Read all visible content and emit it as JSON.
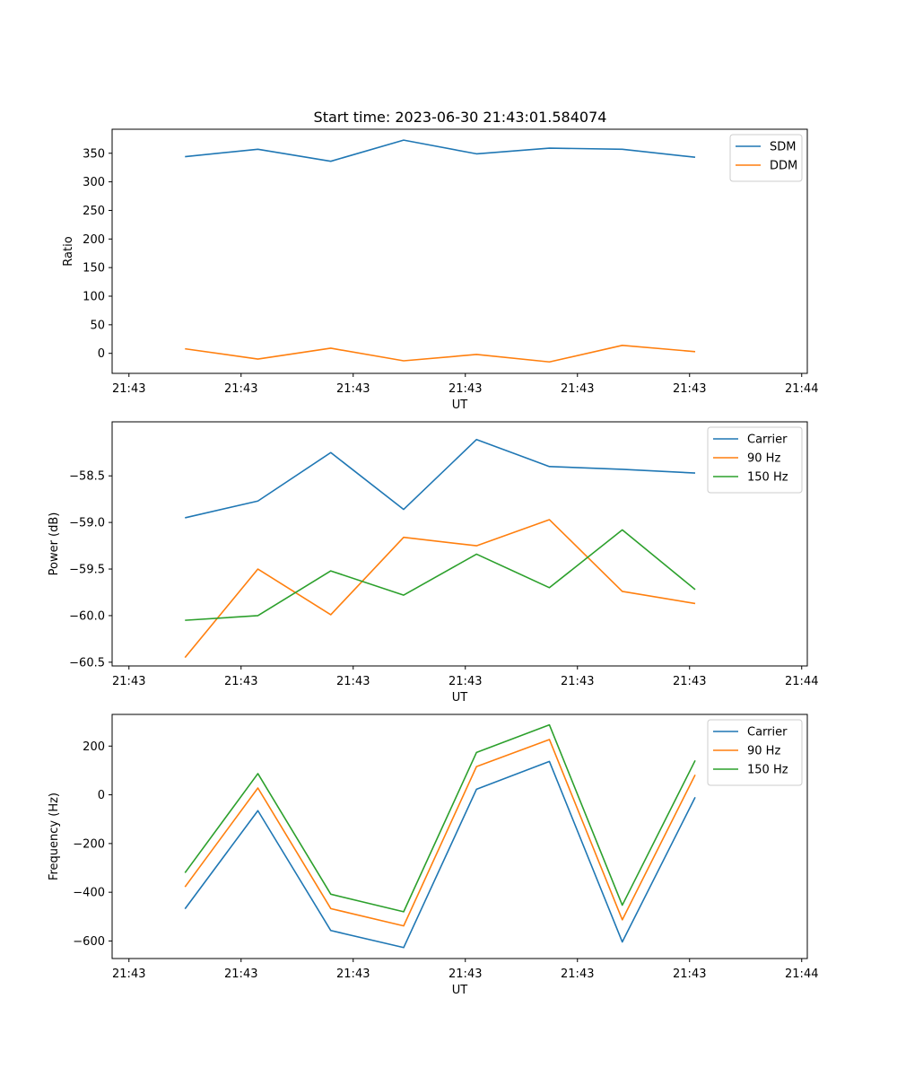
{
  "title": "Start time: 2023-06-30 21:43:01.584074",
  "chart_data": [
    {
      "type": "line",
      "title": "Start time: 2023-06-30 21:43:01.584074",
      "xlabel": "UT",
      "ylabel": "Ratio",
      "x_tick_labels": [
        "21:43",
        "21:43",
        "21:43",
        "21:43",
        "21:43",
        "21:43",
        "21:44"
      ],
      "xlim": [
        -0.15,
        6.05
      ],
      "x": [
        0.5,
        1.15,
        1.8,
        2.45,
        3.1,
        3.75,
        4.4,
        5.05
      ],
      "ylim": [
        -35,
        392
      ],
      "y_ticks": [
        0,
        50,
        100,
        150,
        200,
        250,
        300,
        350
      ],
      "legend": "top-right",
      "grid": false,
      "series": [
        {
          "name": "SDM",
          "color": "#1f77b4",
          "values": [
            344,
            357,
            336,
            373,
            349,
            359,
            357,
            343
          ]
        },
        {
          "name": "DDM",
          "color": "#ff7f0e",
          "values": [
            8,
            -10,
            9,
            -13,
            -2,
            -15,
            14,
            3
          ]
        }
      ]
    },
    {
      "type": "line",
      "xlabel": "UT",
      "ylabel": "Power (dB)",
      "x_tick_labels": [
        "21:43",
        "21:43",
        "21:43",
        "21:43",
        "21:43",
        "21:43",
        "21:44"
      ],
      "xlim": [
        -0.15,
        6.05
      ],
      "x": [
        0.5,
        1.15,
        1.8,
        2.45,
        3.1,
        3.75,
        4.4,
        5.05
      ],
      "ylim": [
        -60.54,
        -57.92
      ],
      "y_ticks": [
        -60.5,
        -60.0,
        -59.5,
        -59.0,
        -58.5
      ],
      "legend": "top-right",
      "grid": false,
      "series": [
        {
          "name": "Carrier",
          "color": "#1f77b4",
          "values": [
            -58.95,
            -58.77,
            -58.25,
            -58.86,
            -58.11,
            -58.4,
            -58.43,
            -58.47
          ]
        },
        {
          "name": "90 Hz",
          "color": "#ff7f0e",
          "values": [
            -60.45,
            -59.5,
            -59.99,
            -59.16,
            -59.25,
            -58.97,
            -59.74,
            -59.87
          ]
        },
        {
          "name": "150 Hz",
          "color": "#2ca02c",
          "values": [
            -60.05,
            -60.0,
            -59.52,
            -59.78,
            -59.34,
            -59.7,
            -59.08,
            -59.72
          ]
        }
      ]
    },
    {
      "type": "line",
      "xlabel": "UT",
      "ylabel": "Frequency (Hz)",
      "x_tick_labels": [
        "21:43",
        "21:43",
        "21:43",
        "21:43",
        "21:43",
        "21:43",
        "21:44"
      ],
      "xlim": [
        -0.15,
        6.05
      ],
      "x": [
        0.5,
        1.15,
        1.8,
        2.45,
        3.1,
        3.75,
        4.4,
        5.05
      ],
      "ylim": [
        -672,
        330
      ],
      "y_ticks": [
        -600,
        -400,
        -200,
        0,
        200
      ],
      "legend": "top-right",
      "grid": false,
      "series": [
        {
          "name": "Carrier",
          "color": "#1f77b4",
          "values": [
            -468,
            -65,
            -557,
            -627,
            23,
            137,
            -604,
            -10
          ]
        },
        {
          "name": "90 Hz",
          "color": "#ff7f0e",
          "values": [
            -378,
            28,
            -467,
            -538,
            116,
            227,
            -513,
            82
          ]
        },
        {
          "name": "150 Hz",
          "color": "#2ca02c",
          "values": [
            -320,
            87,
            -408,
            -480,
            174,
            287,
            -453,
            141
          ]
        }
      ]
    }
  ]
}
